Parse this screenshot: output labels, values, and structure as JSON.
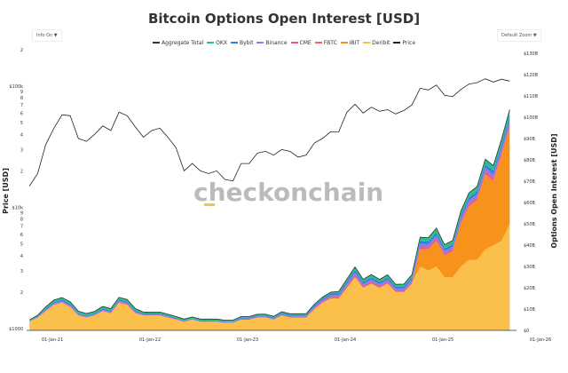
{
  "header": {
    "title": "Bitcoin Options Open Interest [USD]",
    "info_control": "Info On",
    "zoom_control": "Default Zoom",
    "dropdown_icon": "▼"
  },
  "watermark": "checkonchain",
  "chart_data": {
    "type": "area",
    "title": "Bitcoin Options Open Interest [USD]",
    "ylabel_left": "Price [USD]",
    "ylabel_right": "Options Open Interest [USD]",
    "left_scale": "log",
    "ylim_left": [
      1000,
      200000
    ],
    "ylim_right": [
      0,
      130
    ],
    "legend_position": "top",
    "legend": [
      "Aggregate Total",
      "OKX",
      "Bybit",
      "Binance",
      "CME",
      "FBTC",
      "IBIT",
      "Deribit",
      "Price"
    ],
    "x_ticks": [
      "01-Jan-21",
      "01-Jan-22",
      "01-Jan-23",
      "01-Jan-24",
      "01-Jan-25",
      "01-Jan-26"
    ],
    "left_ticks": [
      {
        "v": 1000,
        "l": "$1000"
      },
      {
        "v": 2000,
        "l": "2"
      },
      {
        "v": 3000,
        "l": "3"
      },
      {
        "v": 4000,
        "l": "4"
      },
      {
        "v": 5000,
        "l": "5"
      },
      {
        "v": 6000,
        "l": "6"
      },
      {
        "v": 7000,
        "l": "7"
      },
      {
        "v": 8000,
        "l": "8"
      },
      {
        "v": 9000,
        "l": "9"
      },
      {
        "v": 10000,
        "l": "$10k"
      },
      {
        "v": 20000,
        "l": "2"
      },
      {
        "v": 30000,
        "l": "3"
      },
      {
        "v": 40000,
        "l": "4"
      },
      {
        "v": 50000,
        "l": "5"
      },
      {
        "v": 60000,
        "l": "6"
      },
      {
        "v": 70000,
        "l": "7"
      },
      {
        "v": 80000,
        "l": "8"
      },
      {
        "v": 90000,
        "l": "9"
      },
      {
        "v": 100000,
        "l": "$100k"
      },
      {
        "v": 200000,
        "l": "2"
      }
    ],
    "right_ticks": [
      {
        "v": 0,
        "l": "$0"
      },
      {
        "v": 10,
        "l": "$10B"
      },
      {
        "v": 20,
        "l": "$20B"
      },
      {
        "v": 30,
        "l": "$30B"
      },
      {
        "v": 40,
        "l": "$40B"
      },
      {
        "v": 50,
        "l": "$50B"
      },
      {
        "v": 60,
        "l": "$60B"
      },
      {
        "v": 70,
        "l": "$70B"
      },
      {
        "v": 80,
        "l": "$80B"
      },
      {
        "v": 90,
        "l": "$90B"
      },
      {
        "v": 100,
        "l": "$100B"
      },
      {
        "v": 110,
        "l": "$110B"
      },
      {
        "v": 120,
        "l": "$120B"
      },
      {
        "v": 130,
        "l": "$130B"
      }
    ],
    "x_start": "2020-11",
    "x_step": "month",
    "price": [
      15000,
      19000,
      33000,
      45000,
      58000,
      57000,
      37000,
      35000,
      40000,
      47000,
      43000,
      61000,
      57000,
      46000,
      38000,
      43000,
      45000,
      38000,
      31000,
      20000,
      23000,
      20000,
      19000,
      20000,
      17000,
      16500,
      23000,
      23000,
      28000,
      29000,
      27000,
      30000,
      29000,
      26000,
      27000,
      34000,
      37000,
      42000,
      42000,
      61000,
      71000,
      60000,
      67000,
      62000,
      64000,
      59000,
      63000,
      70000,
      96000,
      93000,
      102000,
      84000,
      82000,
      94000,
      104000,
      107000,
      115000,
      108000,
      114000,
      110000
    ],
    "series": [
      {
        "name": "Deribit",
        "color": "#fbc04b",
        "values": [
          4,
          6,
          9,
          12,
          13,
          11,
          7,
          6,
          7,
          9,
          8,
          13,
          12,
          8,
          7,
          7,
          7,
          6,
          5,
          4,
          5,
          4,
          4,
          4,
          3.5,
          3.5,
          5,
          5,
          6,
          6,
          5,
          7,
          6,
          6,
          6,
          10,
          13,
          15,
          15,
          20,
          25,
          20,
          22,
          20,
          22,
          18,
          18,
          22,
          30,
          28,
          30,
          25,
          25,
          30,
          33,
          33,
          38,
          40,
          42,
          50
        ]
      },
      {
        "name": "IBIT",
        "color": "#f7931a",
        "values": [
          0,
          0,
          0,
          0,
          0,
          0,
          0,
          0,
          0,
          0,
          0,
          0,
          0,
          0,
          0,
          0,
          0,
          0,
          0,
          0,
          0,
          0,
          0,
          0,
          0,
          0,
          0,
          0,
          0,
          0,
          0,
          0,
          0,
          0,
          0,
          0,
          0,
          0,
          0,
          0,
          0,
          0,
          0,
          0,
          0,
          0,
          0,
          0,
          8,
          10,
          12,
          10,
          12,
          20,
          25,
          28,
          35,
          30,
          40,
          45
        ]
      },
      {
        "name": "FBTC",
        "color": "#ff5c6c",
        "values": [
          0,
          0,
          0,
          0,
          0,
          0,
          0,
          0,
          0,
          0,
          0,
          0,
          0,
          0,
          0,
          0,
          0,
          0,
          0,
          0,
          0,
          0,
          0,
          0,
          0,
          0,
          0,
          0,
          0,
          0,
          0,
          0,
          0,
          0,
          0,
          0,
          0,
          0,
          0,
          0,
          0,
          0,
          0,
          0,
          0,
          0,
          0,
          0,
          0,
          0,
          0.1,
          0.1,
          0.1,
          0.2,
          0.2,
          0.2,
          0.3,
          0.3,
          0.3,
          0.3
        ]
      },
      {
        "name": "CME",
        "color": "#f0567a",
        "values": [
          0.1,
          0.1,
          0.3,
          0.3,
          0.3,
          0.3,
          0.2,
          0.2,
          0.2,
          0.3,
          0.3,
          0.4,
          0.4,
          0.3,
          0.2,
          0.2,
          0.2,
          0.2,
          0.2,
          0.1,
          0.1,
          0.1,
          0.1,
          0.1,
          0.1,
          0.1,
          0.2,
          0.2,
          0.2,
          0.2,
          0.2,
          0.3,
          0.3,
          0.3,
          0.3,
          0.5,
          0.6,
          0.7,
          0.7,
          0.9,
          1,
          0.8,
          0.9,
          0.8,
          0.8,
          0.7,
          0.8,
          0.9,
          1.2,
          1.1,
          1.2,
          1,
          1,
          1.1,
          1.2,
          1.2,
          1.3,
          1.3,
          1.4,
          1.5
        ]
      },
      {
        "name": "Binance",
        "color": "#8c7ae6",
        "values": [
          0.1,
          0.2,
          0.3,
          0.4,
          0.5,
          0.5,
          0.4,
          0.3,
          0.3,
          0.4,
          0.4,
          0.5,
          0.5,
          0.4,
          0.3,
          0.3,
          0.3,
          0.3,
          0.3,
          0.2,
          0.2,
          0.2,
          0.2,
          0.2,
          0.2,
          0.2,
          0.3,
          0.3,
          0.4,
          0.4,
          0.4,
          0.4,
          0.4,
          0.4,
          0.4,
          0.6,
          0.7,
          0.8,
          0.8,
          1,
          1.2,
          1,
          1,
          1,
          1,
          0.9,
          0.9,
          1,
          1.4,
          1.3,
          1.4,
          1.2,
          1.2,
          1.4,
          1.5,
          1.5,
          1.7,
          1.7,
          1.8,
          2
        ]
      },
      {
        "name": "Bybit",
        "color": "#2f7de1",
        "values": [
          0.2,
          0.3,
          0.5,
          0.5,
          0.6,
          0.6,
          0.4,
          0.4,
          0.4,
          0.5,
          0.5,
          0.6,
          0.6,
          0.5,
          0.4,
          0.4,
          0.4,
          0.4,
          0.3,
          0.3,
          0.3,
          0.3,
          0.3,
          0.3,
          0.3,
          0.3,
          0.4,
          0.4,
          0.4,
          0.4,
          0.4,
          0.5,
          0.5,
          0.5,
          0.5,
          0.6,
          0.7,
          0.8,
          0.8,
          1,
          1.1,
          0.9,
          1,
          0.9,
          1,
          0.9,
          0.9,
          1,
          1.3,
          1.2,
          1.3,
          1.1,
          1.1,
          1.3,
          1.4,
          1.4,
          1.5,
          1.5,
          1.6,
          1.8
        ]
      },
      {
        "name": "OKX",
        "color": "#2bbf8a",
        "values": [
          0.5,
          0.5,
          1,
          1,
          1,
          1,
          1,
          1,
          1,
          1,
          1,
          1,
          1,
          1,
          0.7,
          0.7,
          0.7,
          0.7,
          0.7,
          0.7,
          0.7,
          0.7,
          0.7,
          0.7,
          0.7,
          0.7,
          0.6,
          0.6,
          0.6,
          0.6,
          0.6,
          0.6,
          0.6,
          0.6,
          0.6,
          0.6,
          0.6,
          0.6,
          1,
          1.2,
          1.5,
          1.2,
          1.3,
          1.2,
          1.3,
          1.1,
          1.1,
          1.3,
          1.8,
          1.8,
          2,
          1.8,
          1.8,
          2,
          2.2,
          2.2,
          2.5,
          2.5,
          2.6,
          3
        ]
      }
    ],
    "colors": {
      "aggregate": "#333333",
      "price": "#222222"
    }
  }
}
